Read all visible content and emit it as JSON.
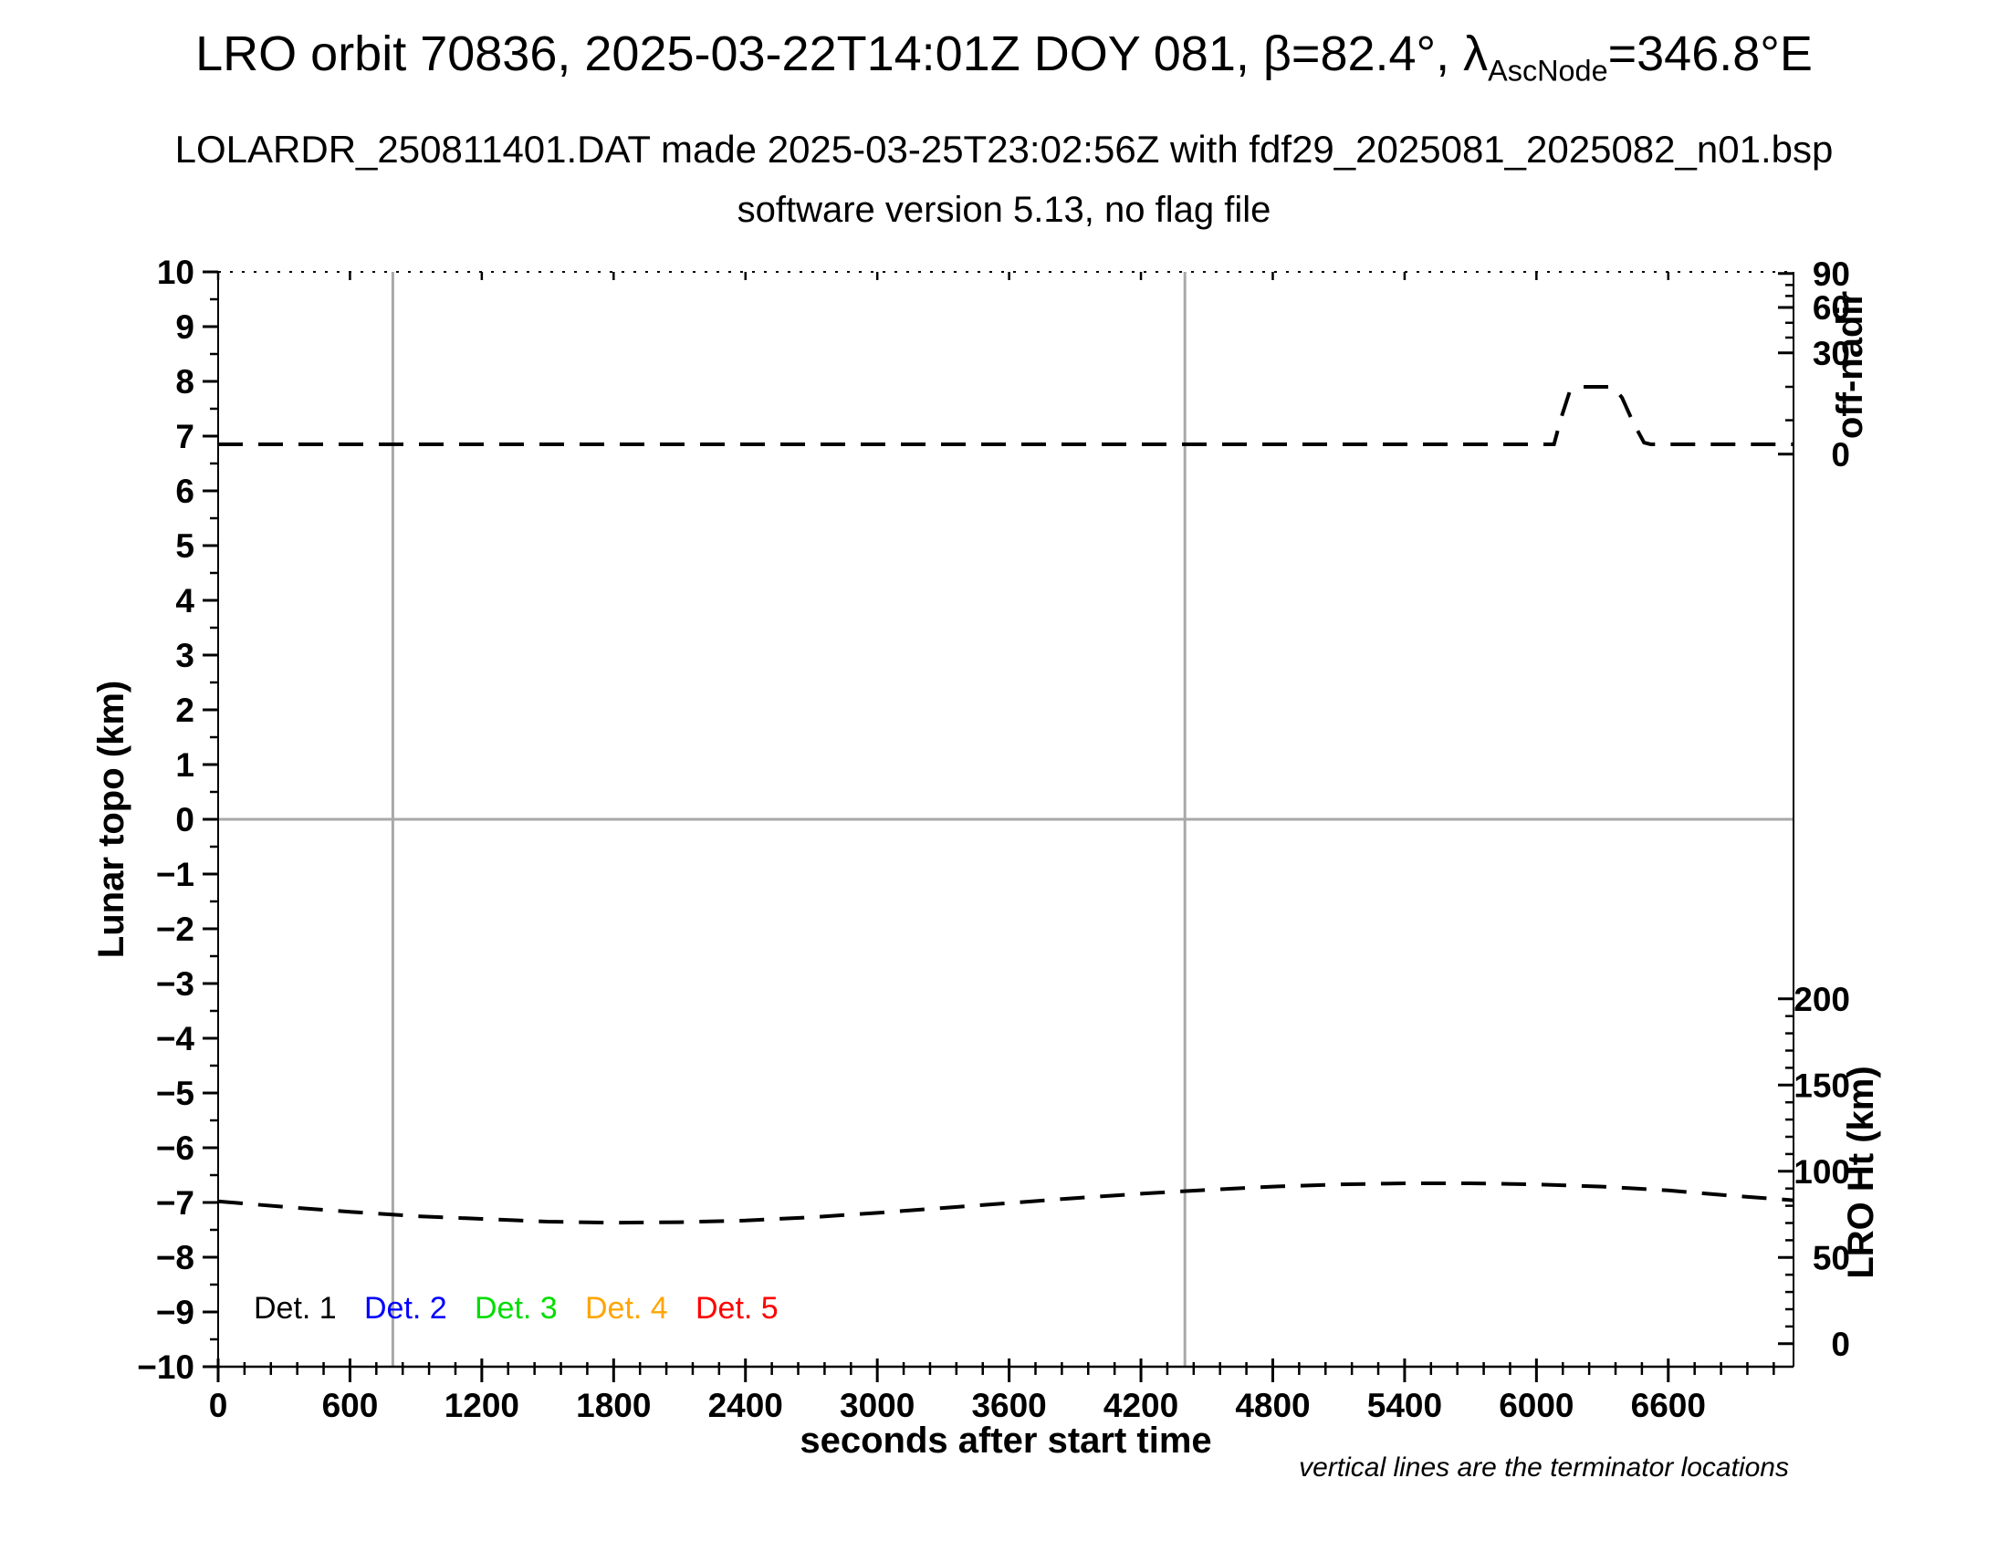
{
  "header": {
    "title_pre": "LRO orbit 70836, 2025-03-22T14:01Z DOY 081, β=82.4°, λ",
    "title_sub": "AscNode",
    "title_post": "=346.8°E",
    "subtitle1": "LOLARDR_250811401.DAT made 2025-03-25T23:02:56Z with fdf29_2025081_2025082_n01.bsp",
    "subtitle2": "software version 5.13, no flag file"
  },
  "chart_data": {
    "type": "line",
    "title": "LRO orbit 70836, 2025-03-22T14:01Z DOY 081, β=82.4°, λAscNode=346.8°E",
    "subtitle1": "LOLARDR_250811401.DAT made 2025-03-25T23:02:56Z with fdf29_2025081_2025082_n01.bsp",
    "subtitle2": "software version 5.13, no flag file",
    "xlabel": "seconds after start time",
    "ylabel_left": "Lunar topo (km)",
    "ylabel_right_top": "off-nadir",
    "ylabel_right_bottom": "LRO Ht (km)",
    "note": "vertical lines are the terminator locations",
    "xlim": [
      0,
      7170
    ],
    "x_major_ticks": [
      0,
      600,
      1200,
      1800,
      2400,
      3000,
      3600,
      4200,
      4800,
      5400,
      6000,
      6600
    ],
    "x_minor_step": 120,
    "ylim_left": [
      -10,
      10
    ],
    "y_left_major_step": 1,
    "y_left_minor_step": 0.5,
    "frame": {
      "top_style": "dotted",
      "color": "#000000"
    },
    "guides": {
      "zero_line_topo": 0,
      "terminator_lines_s": [
        795,
        4400
      ],
      "color": "#a8a8a8"
    },
    "right_axis_off_nadir": {
      "ticks_deg": [
        90,
        60,
        30,
        0
      ],
      "ticks_topo": [
        9.97,
        9.35,
        8.52,
        6.67
      ],
      "minors_topo": [
        9.76,
        9.56,
        9.07,
        8.8,
        7.9,
        7.29
      ],
      "scale": "nonlinear (compressed toward 90)"
    },
    "right_axis_lro_ht": {
      "ticks_km": [
        0,
        50,
        100,
        150,
        200
      ],
      "topo_at_0km": -9.58,
      "topo_per_km": 0.0315,
      "minor_step_km": 10
    },
    "series": [
      {
        "name": "spacecraft off-nadir angle",
        "axis": "right-top-off-nadir",
        "color": "#000000",
        "style": "dashed",
        "summary": "≈3° off-nadir for nearly the whole orbit, slew to ≈20° between ~6100 s and ~6500 s, then back to ≈3°",
        "points_topo": [
          [
            0,
            6.85
          ],
          [
            600,
            6.85
          ],
          [
            1200,
            6.85
          ],
          [
            1800,
            6.85
          ],
          [
            2400,
            6.85
          ],
          [
            3000,
            6.85
          ],
          [
            3600,
            6.85
          ],
          [
            4200,
            6.85
          ],
          [
            4800,
            6.85
          ],
          [
            5400,
            6.85
          ],
          [
            6080,
            6.85
          ],
          [
            6110,
            7.3
          ],
          [
            6150,
            7.8
          ],
          [
            6200,
            7.9
          ],
          [
            6350,
            7.9
          ],
          [
            6390,
            7.7
          ],
          [
            6440,
            7.25
          ],
          [
            6490,
            6.88
          ],
          [
            6520,
            6.85
          ],
          [
            7170,
            6.85
          ]
        ]
      },
      {
        "name": "LRO height",
        "axis": "right-bottom-lro-ht",
        "color": "#000000",
        "style": "dashed",
        "summary": "≈82 km at 0 s, minimum ≈70 km near 1900 s, maximum ≈93 km near 5500 s, ≈84 km at end",
        "points_topo": [
          [
            0,
            -6.98
          ],
          [
            300,
            -7.08
          ],
          [
            600,
            -7.17
          ],
          [
            900,
            -7.25
          ],
          [
            1200,
            -7.3
          ],
          [
            1500,
            -7.35
          ],
          [
            1800,
            -7.37
          ],
          [
            2100,
            -7.36
          ],
          [
            2400,
            -7.33
          ],
          [
            2700,
            -7.27
          ],
          [
            3000,
            -7.19
          ],
          [
            3300,
            -7.1
          ],
          [
            3600,
            -7.01
          ],
          [
            3900,
            -6.92
          ],
          [
            4200,
            -6.84
          ],
          [
            4500,
            -6.77
          ],
          [
            4800,
            -6.71
          ],
          [
            5100,
            -6.67
          ],
          [
            5400,
            -6.65
          ],
          [
            5700,
            -6.65
          ],
          [
            6000,
            -6.67
          ],
          [
            6300,
            -6.71
          ],
          [
            6600,
            -6.78
          ],
          [
            6900,
            -6.88
          ],
          [
            7170,
            -6.96
          ]
        ]
      }
    ],
    "legend": [
      {
        "label": "Det. 1",
        "color": "#000000"
      },
      {
        "label": "Det. 2",
        "color": "#0000ff"
      },
      {
        "label": "Det. 3",
        "color": "#00dd00"
      },
      {
        "label": "Det. 4",
        "color": "#ffa500"
      },
      {
        "label": "Det. 5",
        "color": "#ff0000"
      }
    ],
    "legend_position": "inside bottom-left",
    "grid": "off (only zero line and terminator verticals)"
  }
}
